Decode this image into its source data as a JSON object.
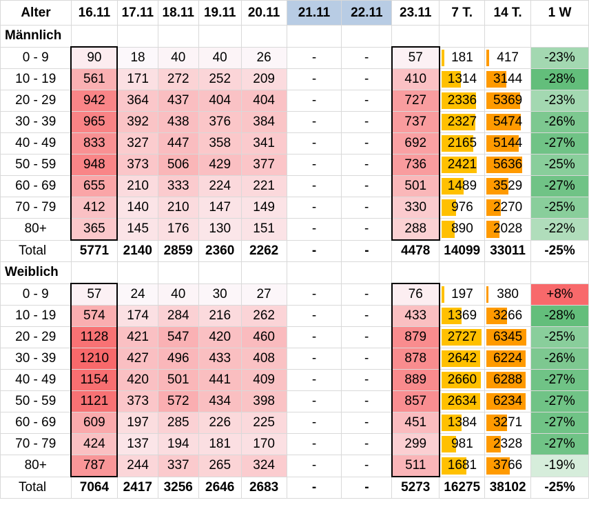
{
  "header": [
    "Alter",
    "16.11",
    "17.11",
    "18.11",
    "19.11",
    "20.11",
    "21.11",
    "22.11",
    "23.11",
    "7 T.",
    "14 T.",
    "1 W"
  ],
  "sections": [
    {
      "title": "Männlich",
      "rows": [
        {
          "age": "0 - 9",
          "vals": [
            "90",
            "18",
            "40",
            "40",
            "26",
            "-",
            "-",
            "57"
          ],
          "t7": "181",
          "t14": "417",
          "w": "-23%"
        },
        {
          "age": "10 - 19",
          "vals": [
            "561",
            "171",
            "272",
            "252",
            "209",
            "-",
            "-",
            "410"
          ],
          "t7": "1314",
          "t14": "3144",
          "w": "-28%"
        },
        {
          "age": "20 - 29",
          "vals": [
            "942",
            "364",
            "437",
            "404",
            "404",
            "-",
            "-",
            "727"
          ],
          "t7": "2336",
          "t14": "5369",
          "w": "-23%"
        },
        {
          "age": "30 - 39",
          "vals": [
            "965",
            "392",
            "438",
            "376",
            "384",
            "-",
            "-",
            "737"
          ],
          "t7": "2327",
          "t14": "5474",
          "w": "-26%"
        },
        {
          "age": "40 - 49",
          "vals": [
            "833",
            "327",
            "447",
            "358",
            "341",
            "-",
            "-",
            "692"
          ],
          "t7": "2165",
          "t14": "5144",
          "w": "-27%"
        },
        {
          "age": "50 - 59",
          "vals": [
            "948",
            "373",
            "506",
            "429",
            "377",
            "-",
            "-",
            "736"
          ],
          "t7": "2421",
          "t14": "5636",
          "w": "-25%"
        },
        {
          "age": "60 - 69",
          "vals": [
            "655",
            "210",
            "333",
            "224",
            "221",
            "-",
            "-",
            "501"
          ],
          "t7": "1489",
          "t14": "3529",
          "w": "-27%"
        },
        {
          "age": "70 - 79",
          "vals": [
            "412",
            "140",
            "210",
            "147",
            "149",
            "-",
            "-",
            "330"
          ],
          "t7": "976",
          "t14": "2270",
          "w": "-25%"
        },
        {
          "age": "80+",
          "vals": [
            "365",
            "145",
            "176",
            "130",
            "151",
            "-",
            "-",
            "288"
          ],
          "t7": "890",
          "t14": "2028",
          "w": "-22%"
        }
      ],
      "total": {
        "label": "Total",
        "vals": [
          "5771",
          "2140",
          "2859",
          "2360",
          "2262",
          "-",
          "-",
          "4478"
        ],
        "t7": "14099",
        "t14": "33011",
        "w": "-25%"
      }
    },
    {
      "title": "Weiblich",
      "rows": [
        {
          "age": "0 - 9",
          "vals": [
            "57",
            "24",
            "40",
            "30",
            "27",
            "-",
            "-",
            "76"
          ],
          "t7": "197",
          "t14": "380",
          "w": "+8%"
        },
        {
          "age": "10 - 19",
          "vals": [
            "574",
            "174",
            "284",
            "216",
            "262",
            "-",
            "-",
            "433"
          ],
          "t7": "1369",
          "t14": "3266",
          "w": "-28%"
        },
        {
          "age": "20 - 29",
          "vals": [
            "1128",
            "421",
            "547",
            "420",
            "460",
            "-",
            "-",
            "879"
          ],
          "t7": "2727",
          "t14": "6345",
          "w": "-25%"
        },
        {
          "age": "30 - 39",
          "vals": [
            "1210",
            "427",
            "496",
            "433",
            "408",
            "-",
            "-",
            "878"
          ],
          "t7": "2642",
          "t14": "6224",
          "w": "-26%"
        },
        {
          "age": "40 - 49",
          "vals": [
            "1154",
            "420",
            "501",
            "441",
            "409",
            "-",
            "-",
            "889"
          ],
          "t7": "2660",
          "t14": "6288",
          "w": "-27%"
        },
        {
          "age": "50 - 59",
          "vals": [
            "1121",
            "373",
            "572",
            "434",
            "398",
            "-",
            "-",
            "857"
          ],
          "t7": "2634",
          "t14": "6234",
          "w": "-27%"
        },
        {
          "age": "60 - 69",
          "vals": [
            "609",
            "197",
            "285",
            "226",
            "225",
            "-",
            "-",
            "451"
          ],
          "t7": "1384",
          "t14": "3271",
          "w": "-27%"
        },
        {
          "age": "70 - 79",
          "vals": [
            "424",
            "137",
            "194",
            "181",
            "170",
            "-",
            "-",
            "299"
          ],
          "t7": "981",
          "t14": "2328",
          "w": "-27%"
        },
        {
          "age": "80+",
          "vals": [
            "787",
            "244",
            "337",
            "265",
            "324",
            "-",
            "-",
            "511"
          ],
          "t7": "1681",
          "t14": "3766",
          "w": "-19%"
        }
      ],
      "total": {
        "label": "Total",
        "vals": [
          "7064",
          "2417",
          "3256",
          "2646",
          "2683",
          "-",
          "-",
          "5273"
        ],
        "t7": "16275",
        "t14": "38102",
        "w": "-25%"
      }
    }
  ],
  "colors": {
    "heat_high": "#f8696b",
    "heat_low": "#fcfcff",
    "bar_7t": "#ffc000",
    "bar_14t": "#ff9a00",
    "week_good": "#63be7b",
    "week_bad": "#f8696b",
    "weekend_header": "#b8cce4"
  },
  "scales": {
    "heat_max": 1210,
    "bar_7t_max": 2727,
    "bar_14t_max": 6345
  }
}
